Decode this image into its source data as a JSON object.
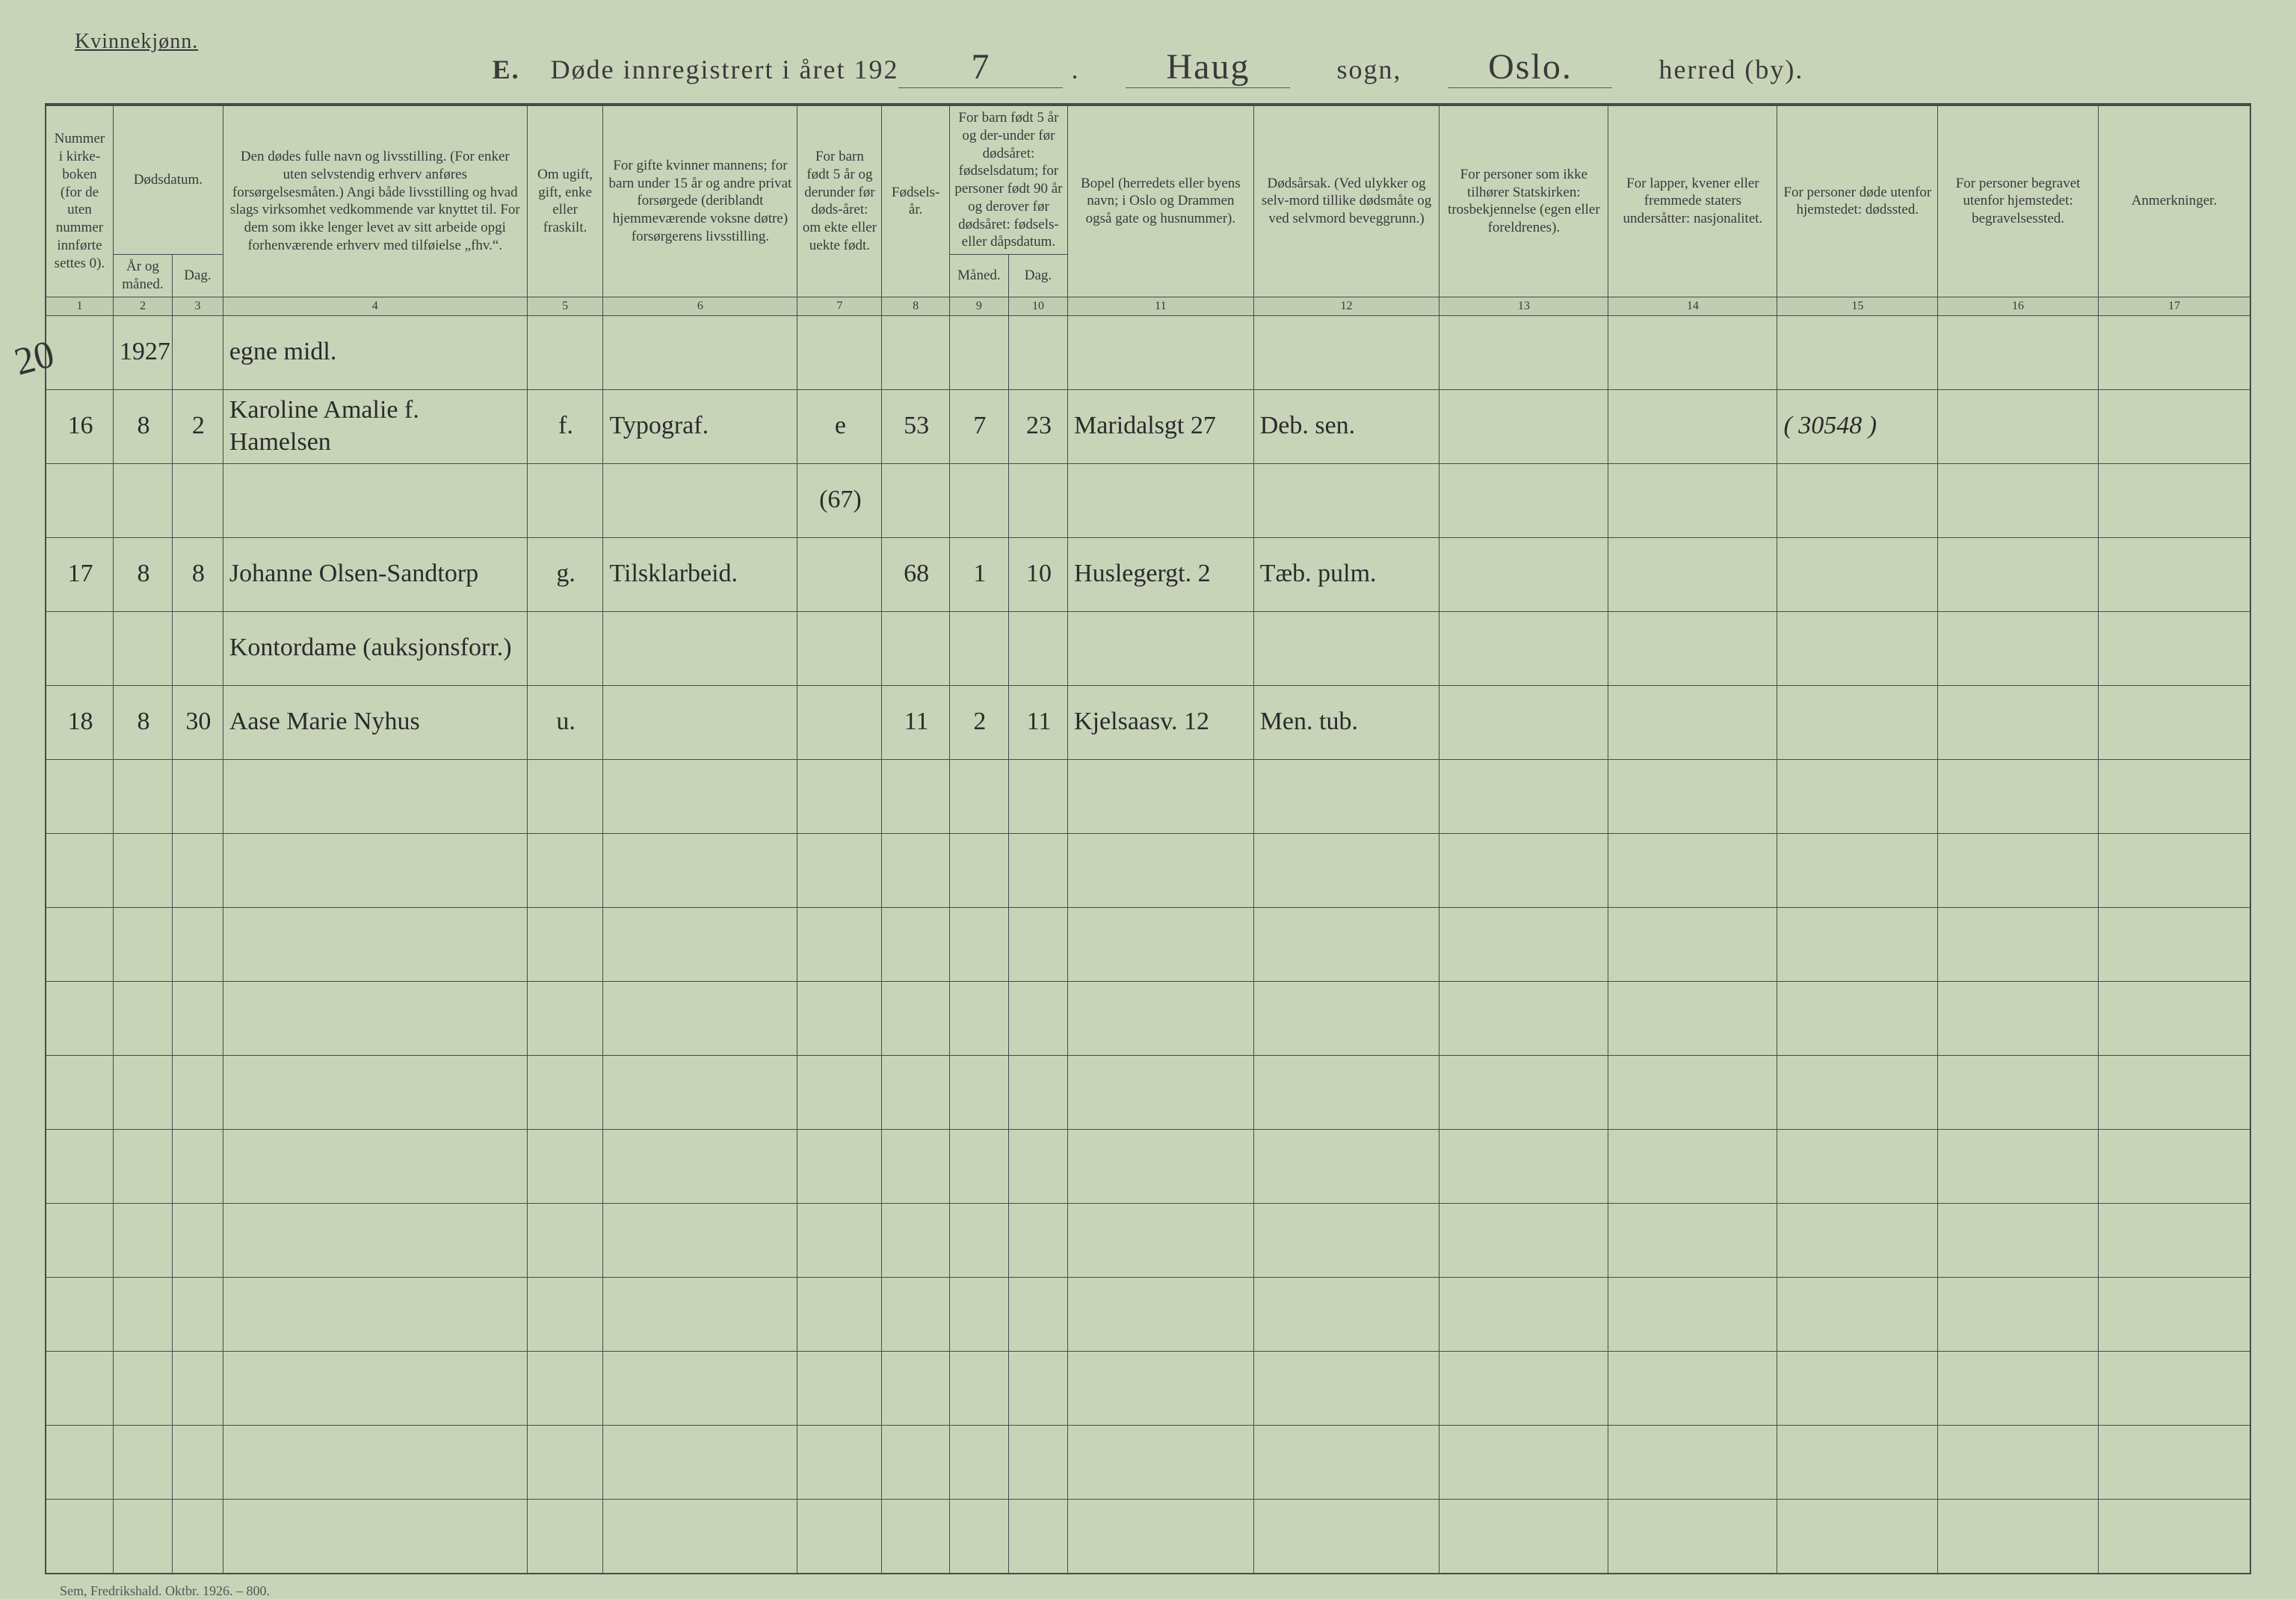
{
  "header": {
    "gender_label": "Kvinnekjønn.",
    "title_prefix": "E.",
    "title_main": "Døde innregistrert i året 192",
    "year_suffix": "7",
    "sogn_value": "Haug",
    "sogn_label": "sogn,",
    "herred_value": "Oslo.",
    "herred_label": "herred (by)."
  },
  "columns": {
    "c1": "Nummer i kirke-boken (for de uten nummer innførte settes 0).",
    "c2_group": "Dødsdatum.",
    "c2": "År og måned.",
    "c3": "Dag.",
    "c4": "Den dødes fulle navn og livsstilling. (For enker uten selvstendig erhverv anføres forsørgelsesmåten.) Angi både livsstilling og hvad slags virksomhet vedkommende var knyttet til. For dem som ikke lenger levet av sitt arbeide opgi forhenværende erhverv med tilføielse „fhv.“.",
    "c5": "Om ugift, gift, enke eller fraskilt.",
    "c6": "For gifte kvinner mannens; for barn under 15 år og andre privat forsørgede (deriblandt hjemmeværende voksne døtre) forsørgerens livsstilling.",
    "c7": "For barn født 5 år og derunder før døds-året: om ekte eller uekte født.",
    "c8": "Fødsels-år.",
    "c9_group": "For barn født 5 år og der-under før dødsåret: fødselsdatum; for personer født 90 år og derover før dødsåret: fødsels- eller dåpsdatum.",
    "c9": "Måned.",
    "c10": "Dag.",
    "c11": "Bopel (herredets eller byens navn; i Oslo og Drammen også gate og husnummer).",
    "c12": "Dødsårsak. (Ved ulykker og selv-mord tillike dødsmåte og ved selvmord beveggrunn.)",
    "c13": "For personer som ikke tilhører Statskirken: trosbekjennelse (egen eller foreldrenes).",
    "c14": "For lapper, kvener eller fremmede staters undersåtter: nasjonalitet.",
    "c15": "For personer døde utenfor hjemstedet: dødssted.",
    "c16": "For personer begravet utenfor hjemstedet: begravelsessted.",
    "c17": "Anmerkninger."
  },
  "colnums": [
    "1",
    "2",
    "3",
    "4",
    "5",
    "6",
    "7",
    "8",
    "9",
    "10",
    "11",
    "12",
    "13",
    "14",
    "15",
    "16",
    "17"
  ],
  "margin_note": "20",
  "rows": [
    {
      "num": "",
      "year_month": "1927",
      "day": "",
      "name": "egne midl.",
      "status": "",
      "provider": "",
      "legit": "",
      "birth_year": "",
      "birth_month": "",
      "birth_day": "",
      "residence": "",
      "cause": "",
      "faith": "",
      "nationality": "",
      "death_place": "",
      "burial_place": "",
      "remarks": ""
    },
    {
      "num": "16",
      "year_month": "8",
      "day": "2",
      "name": "Karoline Amalie f. Hamelsen",
      "status": "f.",
      "provider": "Typograf.",
      "legit": "e",
      "birth_year": "53",
      "birth_month": "7",
      "birth_day": "23",
      "residence": "Maridalsgt 27",
      "cause": "Deb. sen.",
      "faith": "",
      "nationality": "",
      "death_place": "( 30548 )",
      "burial_place": "",
      "remarks": ""
    },
    {
      "num": "",
      "year_month": "",
      "day": "",
      "name": "",
      "status": "",
      "provider": "",
      "legit": "(67)",
      "birth_year": "",
      "birth_month": "",
      "birth_day": "",
      "residence": "",
      "cause": "",
      "faith": "",
      "nationality": "",
      "death_place": "",
      "burial_place": "",
      "remarks": ""
    },
    {
      "num": "17",
      "year_month": "8",
      "day": "8",
      "name": "Johanne Olsen-Sandtorp",
      "status": "g.",
      "provider": "Tilsklarbeid.",
      "legit": "",
      "birth_year": "68",
      "birth_month": "1",
      "birth_day": "10",
      "residence": "Huslegergt. 2",
      "cause": "Tæb. pulm.",
      "faith": "",
      "nationality": "",
      "death_place": "",
      "burial_place": "",
      "remarks": ""
    },
    {
      "num": "",
      "year_month": "",
      "day": "",
      "name": "Kontordame (auksjonsforr.)",
      "status": "",
      "provider": "",
      "legit": "",
      "birth_year": "",
      "birth_month": "",
      "birth_day": "",
      "residence": "",
      "cause": "",
      "faith": "",
      "nationality": "",
      "death_place": "",
      "burial_place": "",
      "remarks": ""
    },
    {
      "num": "18",
      "year_month": "8",
      "day": "30",
      "name": "Aase Marie Nyhus",
      "status": "u.",
      "provider": "",
      "legit": "",
      "birth_year": "11",
      "birth_month": "2",
      "birth_day": "11",
      "residence": "Kjelsaasv. 12",
      "cause": "Men. tub.",
      "faith": "",
      "nationality": "",
      "death_place": "",
      "burial_place": "",
      "remarks": ""
    }
  ],
  "blank_row_count": 11,
  "footer": "Sem, Fredrikshald. Oktbr. 1926. – 800.",
  "colors": {
    "background": "#c8d4b8",
    "border": "#4a4a4a",
    "text": "#3a3a3a",
    "handwriting": "#2b2b2b"
  }
}
